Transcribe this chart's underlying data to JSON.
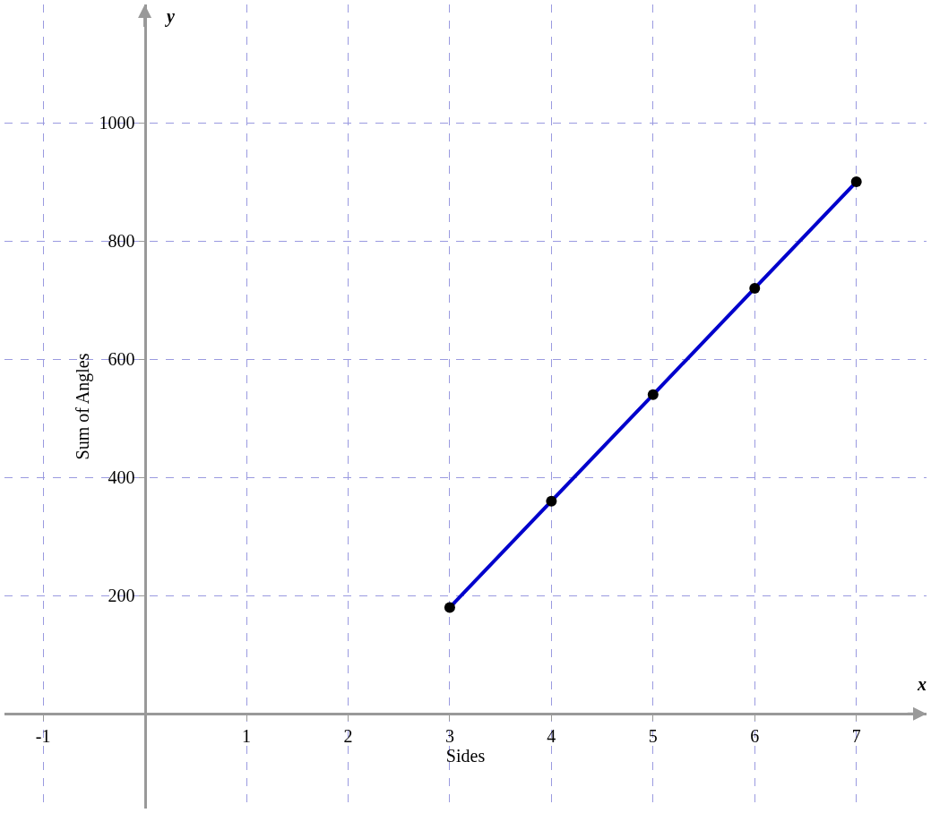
{
  "chart_data": {
    "type": "line",
    "xlabel": "Sides",
    "ylabel": "Sum of Angles",
    "annotations": [
      "y",
      "x"
    ],
    "x": [
      3,
      4,
      5,
      6,
      7
    ],
    "series": [
      {
        "color": "#0000cc",
        "values": [
          180,
          360,
          540,
          720,
          900
        ]
      }
    ],
    "xlim": [
      -1.38,
      7.69
    ],
    "xticks": [
      -1,
      1,
      2,
      3,
      4,
      5,
      6,
      7
    ],
    "ylim": [
      -160,
      1200
    ],
    "yticks": [
      200,
      400,
      600,
      800,
      1000
    ],
    "grid": true,
    "marker": "circle",
    "line_style": "solid",
    "legend": false
  }
}
